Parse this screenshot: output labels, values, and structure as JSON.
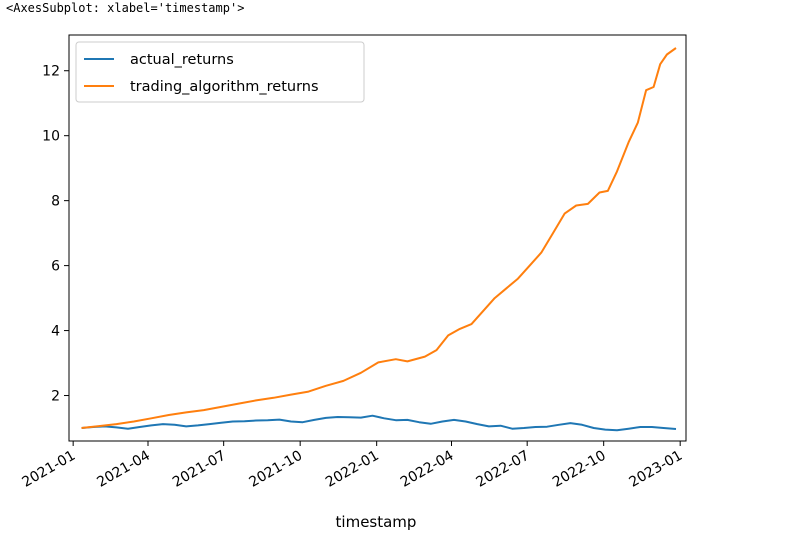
{
  "output": {
    "repr_text": "<AxesSubplot: xlabel='timestamp'>"
  },
  "colors": {
    "actual_returns": "#1f77b4",
    "trading_algorithm_returns": "#ff7f0e",
    "axes": "#000000",
    "background": "#ffffff"
  },
  "chart_data": {
    "type": "line",
    "title": "",
    "xlabel": "timestamp",
    "ylabel": "",
    "grid": false,
    "legend": "upper-left",
    "xlim": [
      "2020-12-27",
      "2023-01-08"
    ],
    "ylim": [
      0.6,
      13.1
    ],
    "x_ticks": [
      {
        "date": "2021-01-01",
        "label": "2021-01"
      },
      {
        "date": "2021-04-01",
        "label": "2021-04"
      },
      {
        "date": "2021-07-01",
        "label": "2021-07"
      },
      {
        "date": "2021-10-01",
        "label": "2021-10"
      },
      {
        "date": "2022-01-01",
        "label": "2022-01"
      },
      {
        "date": "2022-04-01",
        "label": "2022-04"
      },
      {
        "date": "2022-07-01",
        "label": "2022-07"
      },
      {
        "date": "2022-10-01",
        "label": "2022-10"
      },
      {
        "date": "2023-01-01",
        "label": "2023-01"
      }
    ],
    "y_ticks": [
      2,
      4,
      6,
      8,
      10,
      12
    ],
    "series": [
      {
        "name": "actual_returns",
        "color": "#1f77b4",
        "points": [
          [
            "2021-01-11",
            1.0
          ],
          [
            "2021-01-25",
            1.03
          ],
          [
            "2021-02-08",
            1.05
          ],
          [
            "2021-02-22",
            1.02
          ],
          [
            "2021-03-08",
            0.98
          ],
          [
            "2021-03-22",
            1.03
          ],
          [
            "2021-04-05",
            1.08
          ],
          [
            "2021-04-19",
            1.12
          ],
          [
            "2021-05-03",
            1.1
          ],
          [
            "2021-05-17",
            1.05
          ],
          [
            "2021-05-31",
            1.08
          ],
          [
            "2021-06-14",
            1.12
          ],
          [
            "2021-06-28",
            1.16
          ],
          [
            "2021-07-12",
            1.2
          ],
          [
            "2021-07-26",
            1.21
          ],
          [
            "2021-08-09",
            1.23
          ],
          [
            "2021-08-23",
            1.24
          ],
          [
            "2021-09-06",
            1.26
          ],
          [
            "2021-09-20",
            1.2
          ],
          [
            "2021-10-04",
            1.18
          ],
          [
            "2021-10-18",
            1.25
          ],
          [
            "2021-11-01",
            1.31
          ],
          [
            "2021-11-15",
            1.34
          ],
          [
            "2021-11-29",
            1.33
          ],
          [
            "2021-12-13",
            1.32
          ],
          [
            "2021-12-27",
            1.38
          ],
          [
            "2022-01-10",
            1.3
          ],
          [
            "2022-01-24",
            1.24
          ],
          [
            "2022-02-07",
            1.25
          ],
          [
            "2022-02-21",
            1.18
          ],
          [
            "2022-03-07",
            1.13
          ],
          [
            "2022-03-21",
            1.2
          ],
          [
            "2022-04-04",
            1.25
          ],
          [
            "2022-04-18",
            1.2
          ],
          [
            "2022-05-02",
            1.12
          ],
          [
            "2022-05-16",
            1.05
          ],
          [
            "2022-05-30",
            1.07
          ],
          [
            "2022-06-13",
            0.98
          ],
          [
            "2022-06-27",
            1.0
          ],
          [
            "2022-07-11",
            1.03
          ],
          [
            "2022-07-25",
            1.04
          ],
          [
            "2022-08-08",
            1.1
          ],
          [
            "2022-08-22",
            1.15
          ],
          [
            "2022-09-05",
            1.1
          ],
          [
            "2022-09-19",
            1.0
          ],
          [
            "2022-10-03",
            0.95
          ],
          [
            "2022-10-17",
            0.93
          ],
          [
            "2022-10-31",
            0.98
          ],
          [
            "2022-11-14",
            1.03
          ],
          [
            "2022-11-28",
            1.03
          ],
          [
            "2022-12-12",
            1.0
          ],
          [
            "2022-12-27",
            0.97
          ]
        ]
      },
      {
        "name": "trading_algorithm_returns",
        "color": "#ff7f0e",
        "points": [
          [
            "2021-01-11",
            1.0
          ],
          [
            "2021-02-01",
            1.06
          ],
          [
            "2021-02-22",
            1.12
          ],
          [
            "2021-03-15",
            1.2
          ],
          [
            "2021-04-05",
            1.3
          ],
          [
            "2021-04-26",
            1.4
          ],
          [
            "2021-05-17",
            1.48
          ],
          [
            "2021-06-07",
            1.55
          ],
          [
            "2021-06-28",
            1.65
          ],
          [
            "2021-07-19",
            1.75
          ],
          [
            "2021-08-09",
            1.85
          ],
          [
            "2021-08-30",
            1.93
          ],
          [
            "2021-09-20",
            2.03
          ],
          [
            "2021-10-11",
            2.12
          ],
          [
            "2021-11-01",
            2.3
          ],
          [
            "2021-11-22",
            2.45
          ],
          [
            "2021-12-13",
            2.7
          ],
          [
            "2022-01-03",
            3.02
          ],
          [
            "2022-01-24",
            3.12
          ],
          [
            "2022-02-07",
            3.05
          ],
          [
            "2022-02-28",
            3.2
          ],
          [
            "2022-03-14",
            3.4
          ],
          [
            "2022-03-28",
            3.85
          ],
          [
            "2022-04-11",
            4.05
          ],
          [
            "2022-04-25",
            4.2
          ],
          [
            "2022-05-09",
            4.6
          ],
          [
            "2022-05-23",
            5.0
          ],
          [
            "2022-06-06",
            5.3
          ],
          [
            "2022-06-20",
            5.6
          ],
          [
            "2022-07-04",
            6.0
          ],
          [
            "2022-07-18",
            6.4
          ],
          [
            "2022-08-01",
            7.0
          ],
          [
            "2022-08-15",
            7.6
          ],
          [
            "2022-08-29",
            7.85
          ],
          [
            "2022-09-12",
            7.9
          ],
          [
            "2022-09-26",
            8.25
          ],
          [
            "2022-10-06",
            8.3
          ],
          [
            "2022-10-17",
            8.9
          ],
          [
            "2022-10-31",
            9.8
          ],
          [
            "2022-11-11",
            10.4
          ],
          [
            "2022-11-21",
            11.4
          ],
          [
            "2022-11-30",
            11.5
          ],
          [
            "2022-12-08",
            12.2
          ],
          [
            "2022-12-16",
            12.5
          ],
          [
            "2022-12-27",
            12.7
          ]
        ]
      }
    ]
  }
}
